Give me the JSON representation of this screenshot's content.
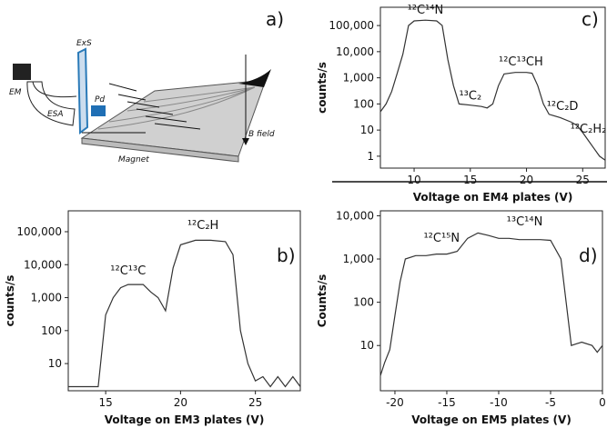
{
  "diagram": {
    "panel_label": "a)",
    "labels": [
      "EM",
      "ESA",
      "ExS",
      "Pd",
      "Magnet",
      "B field"
    ]
  },
  "chart_data": [
    {
      "type": "line",
      "panel_label": "c)",
      "xlabel": "Voltage on EM4 plates (V)",
      "ylabel": "counts/s",
      "color": "#333333",
      "log_y": true,
      "x": [
        7,
        7.5,
        8,
        8.5,
        9,
        9.5,
        10,
        11,
        12,
        12.5,
        13,
        13.5,
        14,
        15,
        16,
        16.5,
        17,
        17.5,
        18,
        19,
        20,
        20.5,
        21,
        21.5,
        22,
        23,
        24,
        24.5,
        25,
        25.5,
        26,
        26.5,
        27
      ],
      "values": [
        50,
        100,
        300,
        1500,
        8000,
        100000,
        150000,
        160000,
        150000,
        100000,
        5000,
        500,
        100,
        90,
        80,
        70,
        100,
        500,
        1400,
        1600,
        1600,
        1500,
        500,
        100,
        40,
        30,
        20,
        15,
        8,
        4,
        2,
        1,
        0.7
      ],
      "xlim": [
        7,
        27
      ],
      "xticks": [
        10,
        15,
        20,
        25
      ],
      "ylim": [
        0.35,
        500000
      ],
      "yticks": [
        1,
        10,
        100,
        {
          "value": 1000,
          "label": "1,000"
        },
        {
          "value": 10000,
          "label": "10,000"
        },
        {
          "value": 100000,
          "label": "100,000"
        }
      ],
      "annotations": [
        {
          "text": "¹²C¹⁴N",
          "x": 11,
          "y": 280000
        },
        {
          "text": "¹³C₂",
          "x": 15,
          "y": 150
        },
        {
          "text": "¹²C¹³CH",
          "x": 19.5,
          "y": 3000
        },
        {
          "text": "¹²C₂D",
          "x": 23.2,
          "y": 60
        },
        {
          "text": "¹²C₂H₂",
          "x": 25.5,
          "y": 8
        }
      ]
    },
    {
      "type": "line",
      "panel_label": "b)",
      "xlabel": "Voltage on EM3 plates (V)",
      "ylabel": "counts/s",
      "color": "#333333",
      "log_y": true,
      "x": [
        12.5,
        13,
        13.5,
        14,
        14.5,
        15,
        15.5,
        16,
        16.5,
        17,
        17.5,
        18,
        18.5,
        19,
        19.5,
        20,
        21,
        22,
        23,
        23.5,
        24,
        24.5,
        25,
        25.5,
        26,
        26.5,
        27,
        27.5,
        28
      ],
      "values": [
        2,
        2,
        2,
        2,
        2,
        300,
        1000,
        2000,
        2500,
        2500,
        2500,
        1500,
        1000,
        400,
        8000,
        40000,
        55000,
        55000,
        50000,
        20000,
        100,
        10,
        3,
        4,
        2,
        4,
        2,
        4,
        2
      ],
      "xlim": [
        12.5,
        28
      ],
      "xticks": [
        15,
        20,
        25
      ],
      "ylim": [
        1.5,
        430000
      ],
      "yticks": [
        10,
        100,
        {
          "value": 1000,
          "label": "1,000"
        },
        {
          "value": 10000,
          "label": "10,000"
        },
        {
          "value": 100000,
          "label": "100,000"
        }
      ],
      "annotations": [
        {
          "text": "¹²C¹³C",
          "x": 16.5,
          "y": 5000
        },
        {
          "text": "¹²C₂H",
          "x": 21.5,
          "y": 120000
        }
      ]
    },
    {
      "type": "line",
      "panel_label": "d)",
      "xlabel": "Voltage on EM5 plates (V)",
      "ylabel": "Counts/s",
      "color": "#333333",
      "log_y": true,
      "x": [
        -21.4,
        -21,
        -20.5,
        -20,
        -19.5,
        -19,
        -18,
        -17,
        -16,
        -15,
        -14,
        -13,
        -12,
        -11,
        -10,
        -9,
        -8,
        -7,
        -6,
        -5,
        -4,
        -3.5,
        -3,
        -2,
        -1,
        -0.5,
        0
      ],
      "values": [
        2,
        4,
        8,
        50,
        300,
        1000,
        1200,
        1200,
        1300,
        1300,
        1500,
        3000,
        4000,
        3500,
        3000,
        3000,
        2800,
        2800,
        2800,
        2700,
        1000,
        100,
        10,
        12,
        10,
        7,
        10
      ],
      "xlim": [
        -21.4,
        0
      ],
      "xticks": [
        -20,
        -15,
        -10,
        -5,
        0
      ],
      "ylim": [
        0.9,
        13000
      ],
      "yticks": [
        10,
        100,
        {
          "value": 1000,
          "label": "1,000"
        },
        {
          "value": 10000,
          "label": "10,000"
        }
      ],
      "annotations": [
        {
          "text": "¹²C¹⁵N",
          "x": -15.5,
          "y": 2500
        },
        {
          "text": "¹³C¹⁴N",
          "x": -7.5,
          "y": 6000
        }
      ]
    }
  ]
}
